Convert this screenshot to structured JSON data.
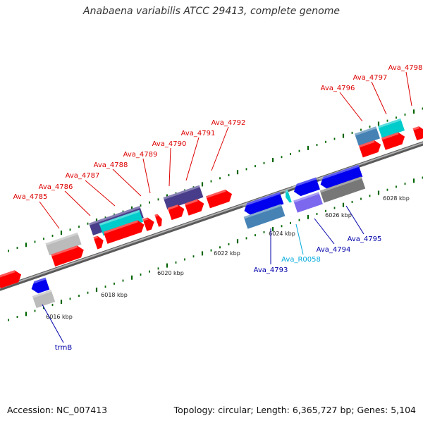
{
  "title": "Anabaena variabilis ATCC 29413, complete genome",
  "footer": {
    "accession": "Accession: NC_007413",
    "summary": "Topology: circular; Length: 6,365,727 bp; Genes: 5,104"
  },
  "colors": {
    "forward_cds": "#ff0000",
    "reverse_cds": "#0000ee",
    "trna": "#00cccc",
    "pseudo": "#bbbbbb",
    "steel": "#4682b4",
    "slate": "#483d8b",
    "backbone": "#888888",
    "tick_major": "#006400",
    "label_forward": "#dd0000",
    "label_reverse": "#0000aa",
    "label_trna": "#00aadd"
  },
  "scale": {
    "unit": "kbp",
    "ticks": [
      {
        "kbp": 6016,
        "label": "6016 kbp"
      },
      {
        "kbp": 6018,
        "label": "6018 kbp"
      },
      {
        "kbp": 6020,
        "label": "6020 kbp"
      },
      {
        "kbp": 6022,
        "label": "6022 kbp"
      },
      {
        "kbp": 6024,
        "label": "6024 kbp"
      },
      {
        "kbp": 6026,
        "label": "6026 kbp"
      },
      {
        "kbp": 6028,
        "label": "6028 kbp"
      }
    ]
  },
  "gene_labels": [
    {
      "name": "trmB",
      "strand": "reverse"
    },
    {
      "name": "Ava_4785",
      "strand": "forward"
    },
    {
      "name": "Ava_4786",
      "strand": "forward"
    },
    {
      "name": "Ava_4787",
      "strand": "forward"
    },
    {
      "name": "Ava_4788",
      "strand": "forward"
    },
    {
      "name": "Ava_4789",
      "strand": "forward"
    },
    {
      "name": "Ava_4790",
      "strand": "forward"
    },
    {
      "name": "Ava_4791",
      "strand": "forward"
    },
    {
      "name": "Ava_4792",
      "strand": "forward"
    },
    {
      "name": "Ava_4793",
      "strand": "reverse"
    },
    {
      "name": "Ava_R0058",
      "strand": "trna"
    },
    {
      "name": "Ava_4794",
      "strand": "reverse"
    },
    {
      "name": "Ava_4795",
      "strand": "reverse"
    },
    {
      "name": "Ava_4796",
      "strand": "forward"
    },
    {
      "name": "Ava_4797",
      "strand": "forward"
    },
    {
      "name": "Ava_4798",
      "strand": "forward"
    }
  ]
}
